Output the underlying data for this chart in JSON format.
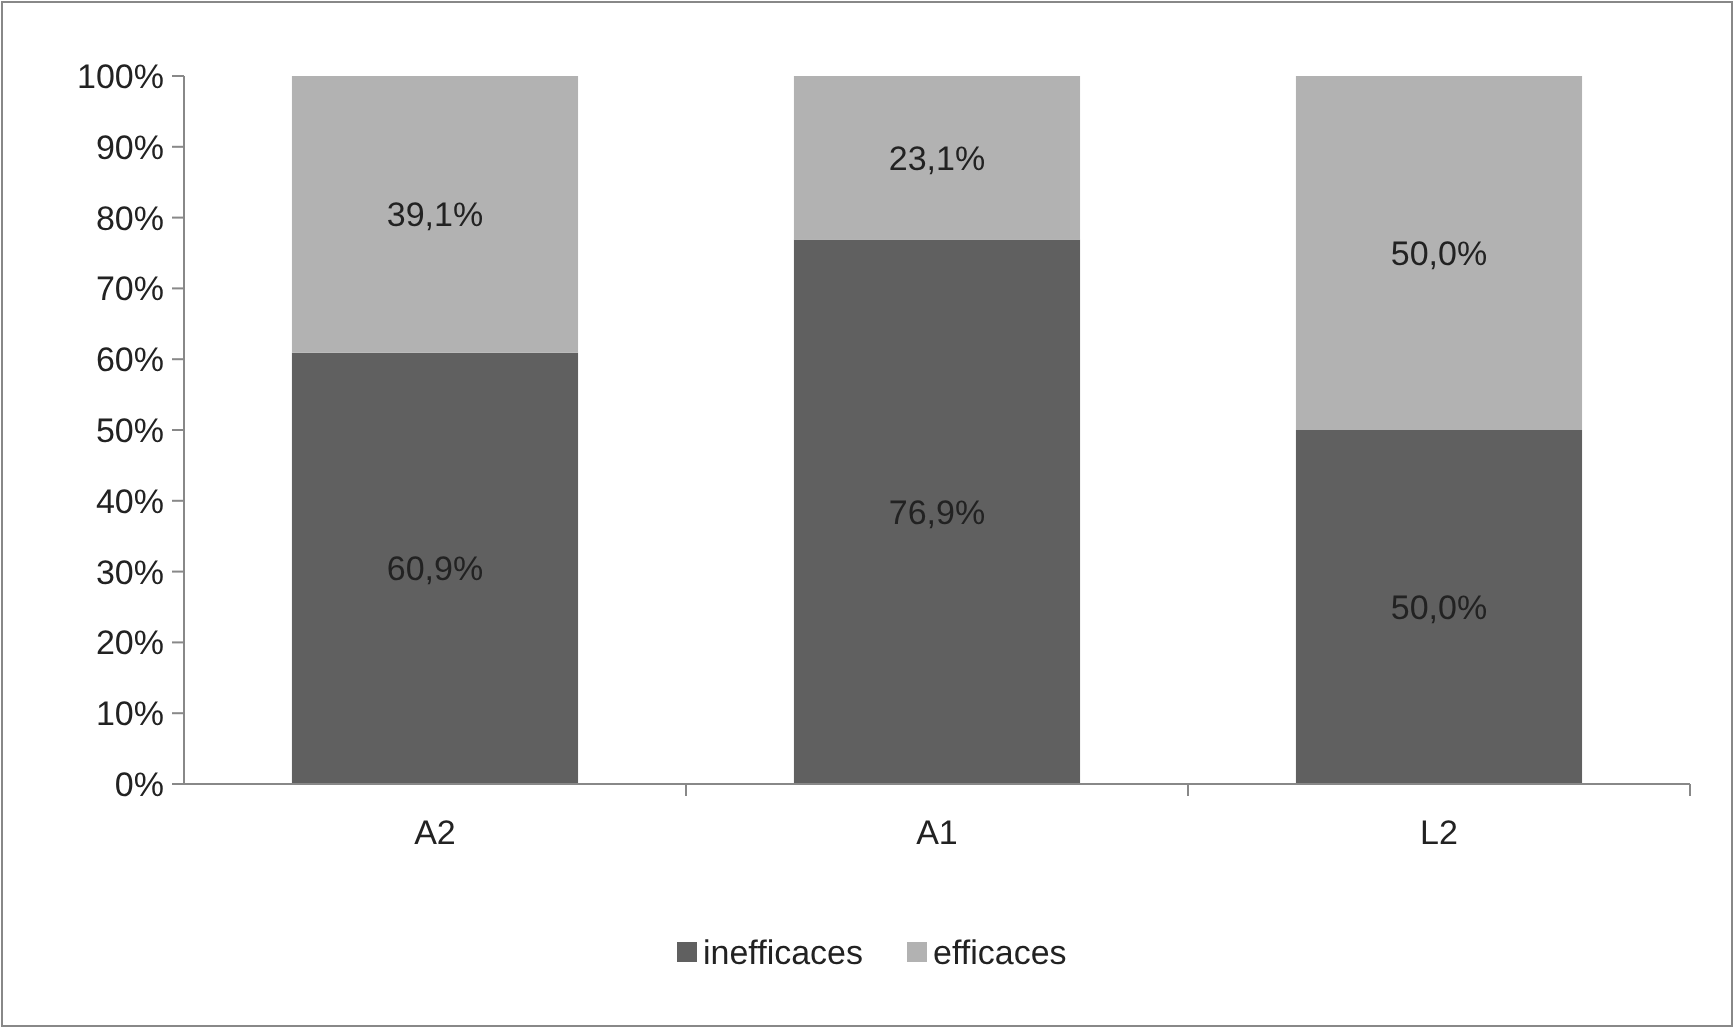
{
  "chart_data": {
    "type": "bar",
    "stacked": true,
    "categories": [
      "A2",
      "A1",
      "L2"
    ],
    "series": [
      {
        "name": "inefficaces",
        "color": "#606060",
        "values": [
          60.9,
          76.9,
          50.0
        ],
        "value_labels": [
          "60,9%",
          "76,9%",
          "50,0%"
        ]
      },
      {
        "name": "efficaces",
        "color": "#b2b2b2",
        "values": [
          39.1,
          23.1,
          50.0
        ],
        "value_labels": [
          "39,1%",
          "23,1%",
          "50,0%"
        ]
      }
    ],
    "ylim": [
      0,
      100
    ],
    "yticks": [
      {
        "value": 0,
        "label": "0%"
      },
      {
        "value": 10,
        "label": "10%"
      },
      {
        "value": 20,
        "label": "20%"
      },
      {
        "value": 30,
        "label": "30%"
      },
      {
        "value": 40,
        "label": "40%"
      },
      {
        "value": 50,
        "label": "50%"
      },
      {
        "value": 60,
        "label": "60%"
      },
      {
        "value": 70,
        "label": "70%"
      },
      {
        "value": 80,
        "label": "80%"
      },
      {
        "value": 90,
        "label": "90%"
      },
      {
        "value": 100,
        "label": "100%"
      }
    ],
    "legend": "bottom"
  }
}
